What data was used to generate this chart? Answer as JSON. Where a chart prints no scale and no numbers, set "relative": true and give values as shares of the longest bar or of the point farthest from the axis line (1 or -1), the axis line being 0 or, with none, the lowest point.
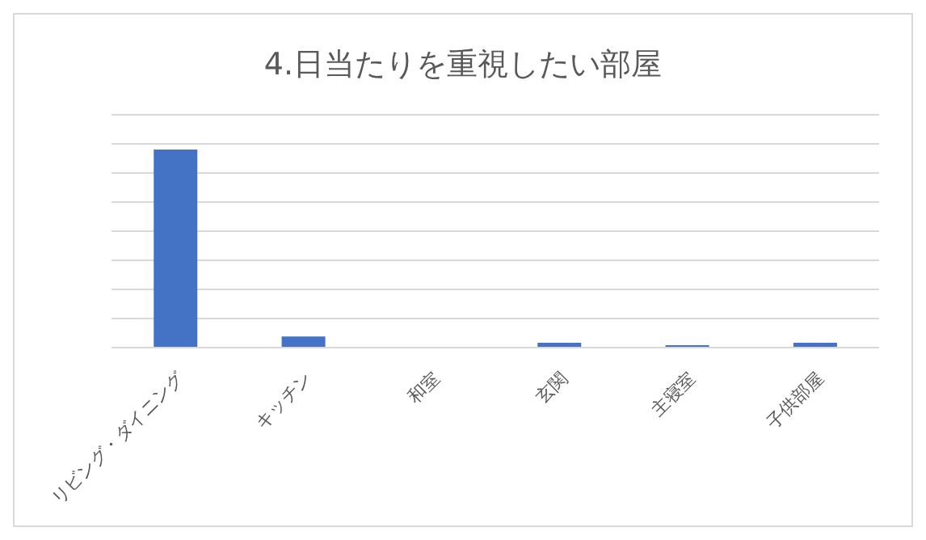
{
  "chart_data": {
    "type": "bar",
    "title": "4.日当たりを重視したい部屋",
    "relative": true,
    "categories": [
      "リビング・ダイニング",
      "キッチン",
      "和室",
      "玄関",
      "主寝室",
      "子供部屋"
    ],
    "values": [
      1,
      0.056,
      0,
      0.025,
      0.012,
      0.025
    ],
    "color": "#4472c4",
    "grid": "y"
  }
}
